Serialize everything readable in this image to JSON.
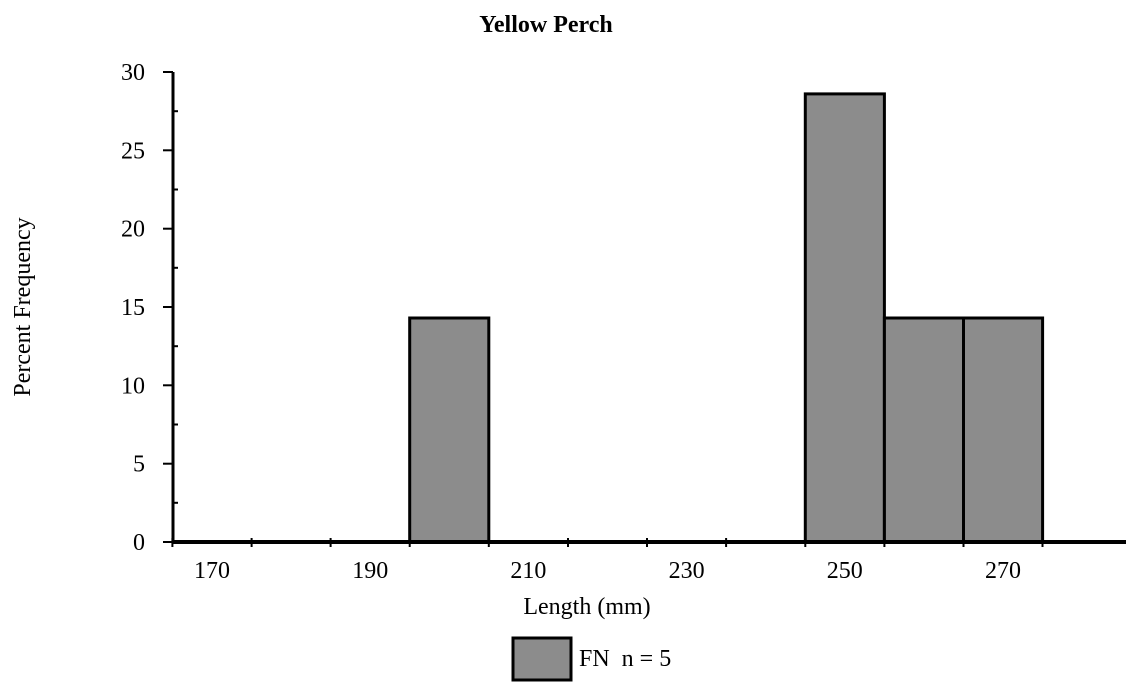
{
  "chart_data": {
    "type": "bar",
    "title": "Yellow Perch",
    "xlabel": "Length (mm)",
    "ylabel": "Percent Frequency",
    "bin_width": 10,
    "x_bins": [
      170,
      180,
      190,
      200,
      210,
      220,
      230,
      240,
      250,
      260,
      270,
      280
    ],
    "x_tick_labels": [
      "170",
      "190",
      "210",
      "230",
      "250",
      "270"
    ],
    "ylim": [
      0,
      30
    ],
    "y_tick_labels": [
      "0",
      "5",
      "10",
      "15",
      "20",
      "25",
      "30"
    ],
    "grid": false,
    "legend_position": "bottom",
    "series": [
      {
        "name": "FN  n = 5",
        "color": "#8c8c8c",
        "values": [
          0,
          0,
          0,
          14.3,
          0,
          0,
          0,
          0,
          28.6,
          14.3,
          14.3,
          0
        ]
      }
    ]
  }
}
